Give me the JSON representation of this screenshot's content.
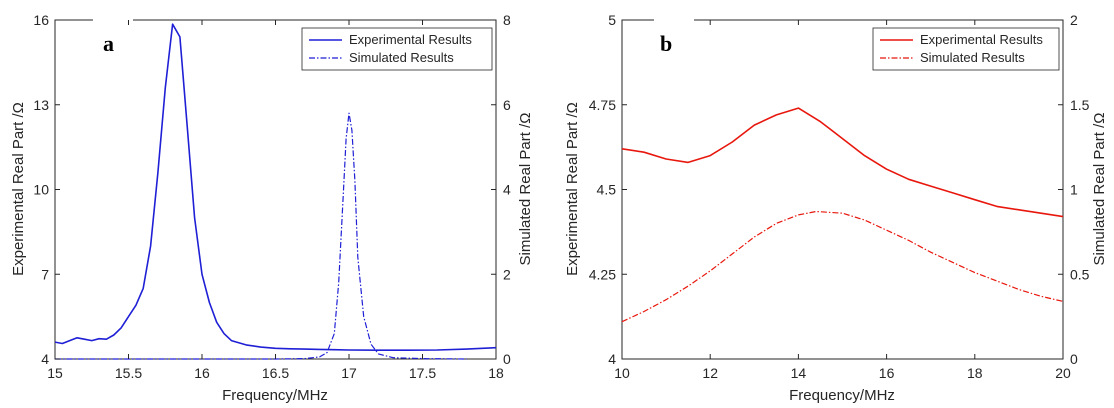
{
  "chart_data": [
    {
      "type": "line",
      "panel_label": "a",
      "xlabel": "Frequency/MHz",
      "ylabel_left": "Experimental Real Part /Ω",
      "ylabel_right": "Simulated Real Part /Ω",
      "xlim": [
        15,
        18
      ],
      "ylim_left": [
        4,
        16
      ],
      "ylim_right": [
        0,
        8
      ],
      "xticks": [
        "15",
        "15.5",
        "16",
        "16.5",
        "17",
        "17.5",
        "18"
      ],
      "yticks_left": [
        "4",
        "7",
        "10",
        "13",
        "16"
      ],
      "yticks_right": [
        "0",
        "2",
        "4",
        "6",
        "8"
      ],
      "legend_position": "top-right",
      "color": "#1f1fd6",
      "series": [
        {
          "name": "Experimental Results",
          "axis": "left",
          "style": "solid",
          "x": [
            15.0,
            15.05,
            15.1,
            15.15,
            15.2,
            15.25,
            15.3,
            15.35,
            15.4,
            15.45,
            15.5,
            15.55,
            15.6,
            15.65,
            15.7,
            15.75,
            15.8,
            15.85,
            15.9,
            15.95,
            16.0,
            16.05,
            16.1,
            16.15,
            16.2,
            16.3,
            16.4,
            16.5,
            16.6,
            16.7,
            16.8,
            16.9,
            17.0,
            17.2,
            17.4,
            17.6,
            17.8,
            18.0
          ],
          "values": [
            4.6,
            4.55,
            4.65,
            4.75,
            4.7,
            4.65,
            4.72,
            4.7,
            4.85,
            5.1,
            5.5,
            5.9,
            6.5,
            8.0,
            10.6,
            13.6,
            15.85,
            15.4,
            12.2,
            9.0,
            7.0,
            6.0,
            5.3,
            4.9,
            4.65,
            4.5,
            4.42,
            4.38,
            4.36,
            4.35,
            4.34,
            4.33,
            4.32,
            4.31,
            4.31,
            4.32,
            4.35,
            4.4
          ]
        },
        {
          "name": "Simulated Results",
          "axis": "right",
          "style": "dash-dot",
          "x": [
            15.0,
            16.5,
            16.7,
            16.8,
            16.85,
            16.9,
            16.93,
            16.96,
            16.98,
            17.0,
            17.02,
            17.04,
            17.06,
            17.1,
            17.15,
            17.2,
            17.3,
            17.5,
            17.8
          ],
          "values": [
            0.0,
            0.0,
            0.01,
            0.05,
            0.15,
            0.6,
            1.8,
            3.8,
            5.2,
            5.8,
            5.4,
            4.2,
            2.4,
            1.0,
            0.35,
            0.12,
            0.03,
            0.01,
            0.0
          ]
        }
      ]
    },
    {
      "type": "line",
      "panel_label": "b",
      "xlabel": "Frequency/MHz",
      "ylabel_left": "Experimental Real Part /Ω",
      "ylabel_right": "Simulated Real Part /Ω",
      "xlim": [
        10,
        20
      ],
      "ylim_left": [
        4,
        5
      ],
      "ylim_right": [
        0,
        2
      ],
      "xticks": [
        "10",
        "12",
        "14",
        "16",
        "18",
        "20"
      ],
      "yticks_left": [
        "4",
        "4.25",
        "4.5",
        "4.75",
        "5"
      ],
      "yticks_right": [
        "0",
        "0.5",
        "1",
        "1.5",
        "2"
      ],
      "legend_position": "top-right",
      "color": "#e8170d",
      "series": [
        {
          "name": "Experimental Results",
          "axis": "left",
          "style": "solid",
          "x": [
            10.0,
            10.5,
            11.0,
            11.5,
            12.0,
            12.5,
            13.0,
            13.5,
            14.0,
            14.5,
            15.0,
            15.5,
            16.0,
            16.5,
            17.0,
            17.5,
            18.0,
            18.5,
            19.0,
            19.5,
            20.0
          ],
          "values": [
            4.62,
            4.61,
            4.59,
            4.58,
            4.6,
            4.64,
            4.69,
            4.72,
            4.74,
            4.7,
            4.65,
            4.6,
            4.56,
            4.53,
            4.51,
            4.49,
            4.47,
            4.45,
            4.44,
            4.43,
            4.42
          ]
        },
        {
          "name": "Simulated Results",
          "axis": "right",
          "style": "dash-dot",
          "x": [
            10.0,
            10.5,
            11.0,
            11.5,
            12.0,
            12.5,
            13.0,
            13.5,
            14.0,
            14.4,
            15.0,
            15.5,
            16.0,
            16.5,
            17.0,
            17.5,
            18.0,
            18.5,
            19.0,
            19.5,
            20.0
          ],
          "values": [
            0.22,
            0.28,
            0.35,
            0.43,
            0.52,
            0.62,
            0.72,
            0.8,
            0.85,
            0.87,
            0.86,
            0.82,
            0.76,
            0.7,
            0.63,
            0.57,
            0.51,
            0.46,
            0.41,
            0.37,
            0.34
          ]
        }
      ]
    }
  ]
}
